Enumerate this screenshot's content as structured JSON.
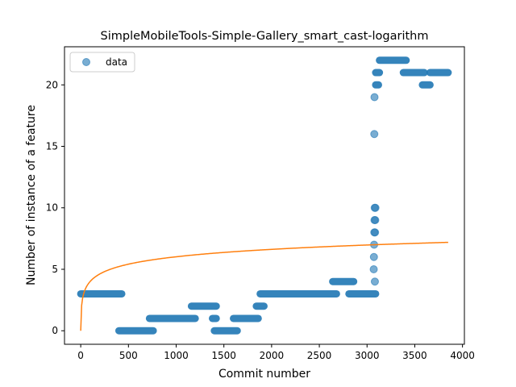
{
  "chart_data": {
    "type": "scatter",
    "title": "SimpleMobileTools-Simple-Gallery_smart_cast-logarithm",
    "xlabel": "Commit number",
    "ylabel": "Number of instance of a feature",
    "xlim": [
      -170,
      4020
    ],
    "ylim": [
      -1.1,
      23.1
    ],
    "xticks": [
      0,
      500,
      1000,
      1500,
      2000,
      2500,
      3000,
      3500,
      4000
    ],
    "yticks": [
      0,
      5,
      10,
      15,
      20
    ],
    "legend": {
      "placement": "top-left",
      "entries": [
        "data"
      ]
    },
    "colors": {
      "points": "#1f77b4",
      "fit": "#ff7f0e"
    },
    "series": [
      {
        "name": "data",
        "kind": "points",
        "segments": [
          {
            "x_start": 0,
            "x_end": 430,
            "y": 3
          },
          {
            "x_start": 400,
            "x_end": 760,
            "y": 0
          },
          {
            "x_start": 720,
            "x_end": 1200,
            "y": 1
          },
          {
            "x_start": 1160,
            "x_end": 1420,
            "y": 2
          },
          {
            "x_start": 1380,
            "x_end": 1420,
            "y": 1
          },
          {
            "x_start": 1400,
            "x_end": 1640,
            "y": 0
          },
          {
            "x_start": 1600,
            "x_end": 1860,
            "y": 1
          },
          {
            "x_start": 1840,
            "x_end": 1920,
            "y": 2
          },
          {
            "x_start": 1880,
            "x_end": 2680,
            "y": 3
          },
          {
            "x_start": 2640,
            "x_end": 2860,
            "y": 4
          },
          {
            "x_start": 2810,
            "x_end": 3090,
            "y": 3
          },
          {
            "x_start": 3090,
            "x_end": 3120,
            "y": 20
          },
          {
            "x_start": 3090,
            "x_end": 3130,
            "y": 21
          },
          {
            "x_start": 3130,
            "x_end": 3410,
            "y": 22
          },
          {
            "x_start": 3380,
            "x_end": 3600,
            "y": 21
          },
          {
            "x_start": 3580,
            "x_end": 3660,
            "y": 20
          },
          {
            "x_start": 3660,
            "x_end": 3850,
            "y": 21
          }
        ],
        "points": [
          {
            "x": 3070,
            "y": 5
          },
          {
            "x": 3072,
            "y": 6
          },
          {
            "x": 3074,
            "y": 7
          },
          {
            "x": 3076,
            "y": 8
          },
          {
            "x": 3078,
            "y": 9
          },
          {
            "x": 3080,
            "y": 10
          },
          {
            "x": 3076,
            "y": 16
          },
          {
            "x": 3078,
            "y": 19
          },
          {
            "x": 3082,
            "y": 4
          },
          {
            "x": 3084,
            "y": 8
          },
          {
            "x": 3086,
            "y": 9
          },
          {
            "x": 3088,
            "y": 10
          }
        ]
      },
      {
        "name": "",
        "kind": "line",
        "function": "logarithmic",
        "a": 0.871,
        "b": 0
      }
    ]
  }
}
